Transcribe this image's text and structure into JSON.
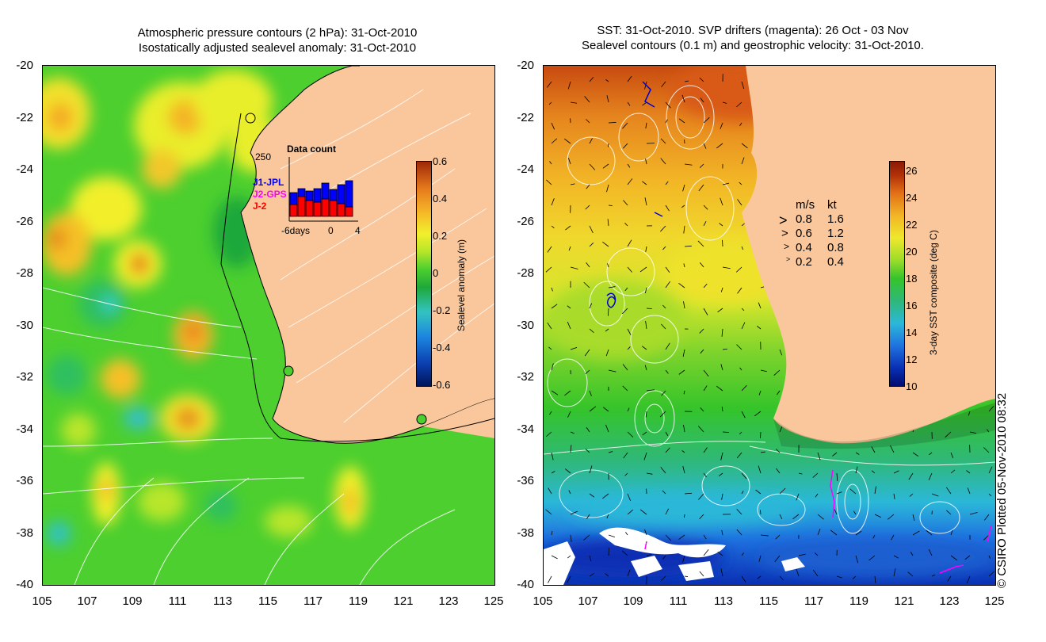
{
  "left_panel": {
    "title_line1": "Atmospheric pressure contours (2 hPa): 31-Oct-2010",
    "title_line2": "Isostatically adjusted sealevel anomaly: 31-Oct-2010",
    "colorbar": {
      "label": "Sealevel anomaly (m)",
      "ticks": [
        "0.6",
        "0.4",
        "0.2",
        "0",
        "-0.2",
        "-0.4",
        "-0.6"
      ],
      "range": [
        -0.6,
        0.6
      ]
    },
    "inset": {
      "title": "Data count",
      "max_label": "250",
      "x_labels": [
        "-6days",
        "0",
        "4"
      ],
      "missions": [
        {
          "name": "J1-JPL",
          "color": "#0000ff"
        },
        {
          "name": "J2-GPS",
          "color": "#ff00ff"
        },
        {
          "name": "J-2",
          "color": "#ff0000"
        }
      ]
    }
  },
  "right_panel": {
    "title_line1": "SST: 31-Oct-2010. SVP drifters (magenta): 26 Oct - 03 Nov",
    "title_line2": "Sealevel contours (0.1 m) and geostrophic velocity: 31-Oct-2010.",
    "colorbar": {
      "label": "3-day SST composite (deg C)",
      "ticks": [
        "26",
        "24",
        "22",
        "20",
        "18",
        "16",
        "14",
        "12",
        "10"
      ],
      "range": [
        10,
        27
      ]
    },
    "velocity_legend": {
      "header_ms": "m/s",
      "header_kt": "kt",
      "rows": [
        {
          "ms": "0.8",
          "kt": "1.6"
        },
        {
          "ms": "0.6",
          "kt": "1.2"
        },
        {
          "ms": "0.4",
          "kt": "0.8"
        },
        {
          "ms": "0.2",
          "kt": "0.4"
        }
      ]
    }
  },
  "axes": {
    "lat_ticks": [
      "-20",
      "-22",
      "-24",
      "-26",
      "-28",
      "-30",
      "-32",
      "-34",
      "-36",
      "-38",
      "-40"
    ],
    "lon_ticks": [
      "105",
      "107",
      "109",
      "111",
      "113",
      "115",
      "117",
      "119",
      "121",
      "123",
      "125"
    ]
  },
  "credit": "© CSIRO Plotted 05-Nov-2010 08:32",
  "colors": {
    "land": "#f9c79b",
    "sea_base": "#4ccf2f"
  }
}
